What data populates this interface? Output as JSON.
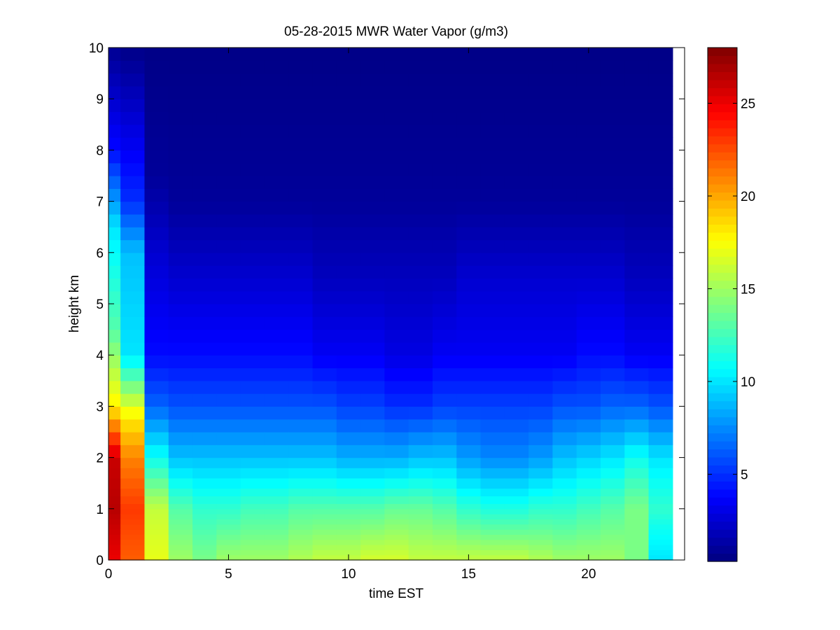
{
  "chart_data": {
    "type": "heatmap",
    "title": "05-28-2015 MWR Water Vapor (g/m3)",
    "xlabel": "time EST",
    "ylabel": "height km",
    "xlim": [
      0,
      24
    ],
    "ylim": [
      0,
      10
    ],
    "xticks": [
      0,
      5,
      10,
      15,
      20
    ],
    "yticks": [
      0,
      1,
      2,
      3,
      4,
      5,
      6,
      7,
      8,
      9,
      10
    ],
    "colorbar": {
      "ticks": [
        5,
        10,
        15,
        20,
        25
      ],
      "range": [
        0.3,
        28
      ],
      "colormap": "jet"
    },
    "grid": false,
    "x": [
      0,
      1,
      2,
      3,
      4,
      5,
      6,
      7,
      8,
      9,
      10,
      11,
      12,
      13,
      14,
      15,
      16,
      17,
      18,
      19,
      20,
      21,
      22,
      23
    ],
    "heights": [
      0,
      0.1,
      0.2,
      0.3,
      0.4,
      0.5,
      0.6,
      0.7,
      0.8,
      0.9,
      1.0,
      1.1,
      1.25,
      1.4,
      1.6,
      1.8,
      2.0,
      2.25,
      2.5,
      2.75,
      3.0,
      3.25,
      3.5,
      3.75,
      4.0,
      4.25,
      4.5,
      4.75,
      5.0,
      5.25,
      5.5,
      5.75,
      6.0,
      6.25,
      6.5,
      6.75,
      7.0,
      7.25,
      7.5,
      7.75,
      8.0,
      8.25,
      8.5,
      8.75,
      9.0,
      9.25,
      9.5,
      9.75
    ],
    "series": [
      {
        "t": 0,
        "h": [
          0,
          1.0,
          2.0,
          3.0,
          4.5,
          6.5,
          8.0,
          10.0
        ],
        "v": [
          25,
          26.5,
          26,
          18,
          13,
          10,
          4,
          0.8
        ]
      },
      {
        "t": 1,
        "h": [
          0,
          1.0,
          2.0,
          2.8,
          4.0,
          6.0,
          7.0,
          9.0,
          10.0
        ],
        "v": [
          22,
          23,
          21,
          18,
          10,
          9,
          5,
          2,
          0.5
        ]
      },
      {
        "t": 2,
        "h": [
          0,
          1.0,
          2.0,
          3.0,
          4.0,
          6.0,
          7.5,
          10.0
        ],
        "v": [
          17,
          16,
          11,
          6.5,
          4,
          2.5,
          1,
          0.5
        ]
      },
      {
        "t": 3,
        "h": [
          0,
          1.0,
          2.0,
          3.0,
          4.0,
          5.5,
          7.0,
          10.0
        ],
        "v": [
          15,
          13,
          9,
          6,
          4,
          2.5,
          1,
          0.5
        ]
      },
      {
        "t": 4,
        "h": [
          0,
          1.0,
          2.0,
          3.0,
          4.0,
          5.5,
          7.0,
          10.0
        ],
        "v": [
          14,
          12,
          9,
          6,
          4,
          2.5,
          1,
          0.5
        ]
      },
      {
        "t": 5,
        "h": [
          0,
          1.0,
          2.0,
          3.0,
          4.0,
          5.5,
          7.0,
          10.0
        ],
        "v": [
          15,
          12,
          9,
          6,
          4,
          2.5,
          1,
          0.5
        ]
      },
      {
        "t": 6,
        "h": [
          0,
          1.0,
          2.0,
          3.0,
          4.0,
          5.5,
          7.0,
          10.0
        ],
        "v": [
          15,
          12.5,
          9,
          6,
          4,
          2.5,
          1,
          0.5
        ]
      },
      {
        "t": 7,
        "h": [
          0,
          1.0,
          2.0,
          3.0,
          4.0,
          5.5,
          7.0,
          10.0
        ],
        "v": [
          15,
          12.5,
          9,
          6,
          4,
          2.5,
          1,
          0.5
        ]
      },
      {
        "t": 8,
        "h": [
          0,
          1.0,
          2.0,
          3.0,
          4.0,
          5.5,
          7.0,
          10.0
        ],
        "v": [
          15.5,
          13,
          9,
          6,
          4,
          2.5,
          1,
          0.5
        ]
      },
      {
        "t": 9,
        "h": [
          0,
          1.0,
          2.0,
          3.0,
          4.0,
          5.5,
          7.0,
          10.0
        ],
        "v": [
          16,
          13,
          9,
          6,
          3.5,
          2,
          1,
          0.5
        ]
      },
      {
        "t": 10,
        "h": [
          0,
          1.0,
          2.0,
          3.0,
          4.0,
          5.5,
          7.0,
          10.0
        ],
        "v": [
          16,
          13,
          8.5,
          5.5,
          3.5,
          2,
          1,
          0.5
        ]
      },
      {
        "t": 11,
        "h": [
          0,
          1.0,
          2.0,
          3.0,
          4.0,
          5.5,
          7.0,
          10.0
        ],
        "v": [
          16.5,
          13,
          8.5,
          5.5,
          3.5,
          2,
          1,
          0.5
        ]
      },
      {
        "t": 12,
        "h": [
          0,
          1.0,
          2.0,
          3.0,
          4.0,
          5.5,
          7.0,
          10.0
        ],
        "v": [
          16.5,
          13.5,
          8.5,
          5,
          3,
          2,
          1,
          0.5
        ]
      },
      {
        "t": 13,
        "h": [
          0,
          1.0,
          2.0,
          3.0,
          4.0,
          5.5,
          7.0,
          10.0
        ],
        "v": [
          16,
          13.5,
          9,
          5,
          3,
          2,
          1,
          0.5
        ]
      },
      {
        "t": 14,
        "h": [
          0,
          1.0,
          2.0,
          3.0,
          4.0,
          5.5,
          7.0,
          10.0
        ],
        "v": [
          16,
          13,
          9,
          5.5,
          3.5,
          2,
          1,
          0.5
        ]
      },
      {
        "t": 15,
        "h": [
          0,
          1.0,
          2.0,
          3.0,
          4.0,
          5.5,
          7.0,
          10.0
        ],
        "v": [
          16,
          12,
          8,
          5.5,
          3.5,
          2.5,
          1,
          0.5
        ]
      },
      {
        "t": 16,
        "h": [
          0,
          1.0,
          2.0,
          3.0,
          4.0,
          5.5,
          7.0,
          10.0
        ],
        "v": [
          16,
          11.5,
          7.5,
          5.5,
          3.5,
          2.5,
          1,
          0.5
        ]
      },
      {
        "t": 17,
        "h": [
          0,
          1.0,
          2.0,
          3.0,
          4.0,
          5.5,
          7.0,
          10.0
        ],
        "v": [
          16,
          11.5,
          7.5,
          5.5,
          3.5,
          2.5,
          1,
          0.5
        ]
      },
      {
        "t": 18,
        "h": [
          0,
          1.0,
          2.0,
          3.0,
          4.0,
          5.5,
          7.0,
          10.0
        ],
        "v": [
          15.5,
          12,
          8,
          5.5,
          3.5,
          2.5,
          1,
          0.5
        ]
      },
      {
        "t": 19,
        "h": [
          0,
          1.0,
          2.0,
          3.0,
          4.0,
          5.5,
          7.0,
          10.0
        ],
        "v": [
          15,
          12,
          9,
          6,
          3.5,
          2.5,
          1,
          0.5
        ]
      },
      {
        "t": 20,
        "h": [
          0,
          1.0,
          2.0,
          3.0,
          4.0,
          5.5,
          7.0,
          10.0
        ],
        "v": [
          15,
          12.5,
          9.5,
          6,
          4,
          2.5,
          1,
          0.5
        ]
      },
      {
        "t": 21,
        "h": [
          0,
          1.0,
          2.0,
          3.0,
          4.0,
          5.5,
          7.0,
          10.0
        ],
        "v": [
          15,
          13,
          10,
          6.5,
          4,
          2.5,
          1,
          0.5
        ]
      },
      {
        "t": 22,
        "h": [
          0,
          1.0,
          2.0,
          3.0,
          4.0,
          5.5,
          7.0,
          10.0
        ],
        "v": [
          14,
          14,
          11,
          6.5,
          3.5,
          2,
          1,
          0.5
        ]
      },
      {
        "t": 23,
        "h": [
          0,
          0.6,
          1.0,
          2.0,
          3.0,
          4.0,
          5.5,
          7.0,
          10.0
        ],
        "v": [
          10,
          11,
          12,
          10,
          6,
          3.5,
          2,
          1,
          0.5
        ]
      }
    ]
  }
}
